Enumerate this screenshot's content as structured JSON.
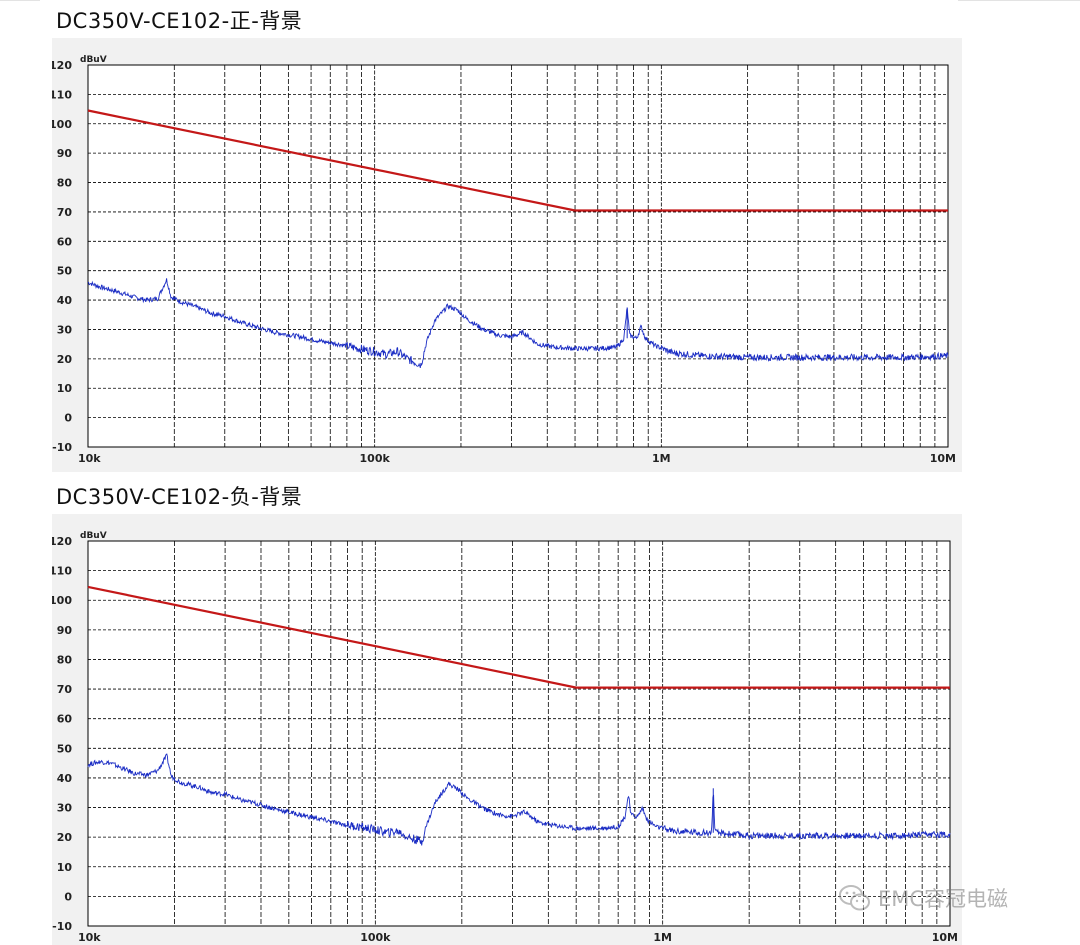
{
  "colors": {
    "plot_bg": "#ffffff",
    "frame_bg": "#f1f1f1",
    "grid": "#000000",
    "limit_line": "#c41818",
    "trace": "#1a2cc4"
  },
  "watermark": {
    "text": "EMC容冠电磁",
    "icon": "wechat-icon"
  },
  "chart_data": [
    {
      "type": "line",
      "title": "DC350V-CE102-正-背景",
      "ylabel": "dBuV",
      "xlabel": "",
      "x_scale": "log",
      "xlim": [
        10000,
        10000000
      ],
      "ylim": [
        -10,
        120
      ],
      "grid": true,
      "x_ticks": [
        {
          "value": 10000,
          "label": "10k"
        },
        {
          "value": 100000,
          "label": "100k"
        },
        {
          "value": 1000000,
          "label": "1M"
        },
        {
          "value": 10000000,
          "label": "10M"
        }
      ],
      "y_ticks": [
        -10,
        0,
        10,
        20,
        30,
        40,
        50,
        60,
        70,
        80,
        90,
        100,
        110,
        120
      ],
      "series": [
        {
          "kind": "limit",
          "points": [
            [
              10000,
              104.5
            ],
            [
              500000,
              70.5
            ],
            [
              10000000,
              70.5
            ]
          ]
        },
        {
          "kind": "measured",
          "points": [
            [
              10000,
              46
            ],
            [
              11000,
              44.5
            ],
            [
              12000,
              43.5
            ],
            [
              13000,
              42.5
            ],
            [
              14500,
              41
            ],
            [
              16000,
              40
            ],
            [
              17500,
              40.5
            ],
            [
              18800,
              47
            ],
            [
              19500,
              41
            ],
            [
              21000,
              39.5
            ],
            [
              24000,
              37.5
            ],
            [
              27000,
              35.5
            ],
            [
              30000,
              34.5
            ],
            [
              34000,
              32.5
            ],
            [
              38000,
              31
            ],
            [
              45000,
              29
            ],
            [
              55000,
              27.5
            ],
            [
              65000,
              26
            ],
            [
              75000,
              25
            ],
            [
              88000,
              23.5
            ],
            [
              100000,
              22.5
            ],
            [
              110000,
              21.5
            ],
            [
              120000,
              22.5
            ],
            [
              130000,
              20
            ],
            [
              145000,
              18
            ],
            [
              152000,
              26
            ],
            [
              162000,
              33
            ],
            [
              180000,
              38
            ],
            [
              195000,
              36.5
            ],
            [
              210000,
              33.5
            ],
            [
              240000,
              30
            ],
            [
              270000,
              28
            ],
            [
              300000,
              27.5
            ],
            [
              330000,
              29
            ],
            [
              370000,
              25
            ],
            [
              420000,
              24
            ],
            [
              500000,
              23.5
            ],
            [
              600000,
              23.5
            ],
            [
              700000,
              24
            ],
            [
              740000,
              27
            ],
            [
              760000,
              37.5
            ],
            [
              775000,
              28
            ],
            [
              820000,
              27
            ],
            [
              850000,
              31
            ],
            [
              880000,
              27
            ],
            [
              950000,
              24.5
            ],
            [
              1100000,
              22
            ],
            [
              1400000,
              21
            ],
            [
              2000000,
              20.5
            ],
            [
              3000000,
              20.5
            ],
            [
              5000000,
              20.5
            ],
            [
              7000000,
              20.5
            ],
            [
              10000000,
              21
            ]
          ]
        }
      ]
    },
    {
      "type": "line",
      "title": "DC350V-CE102-负-背景",
      "ylabel": "dBuV",
      "xlabel": "",
      "x_scale": "log",
      "xlim": [
        10000,
        10000000
      ],
      "ylim": [
        -10,
        120
      ],
      "grid": true,
      "x_ticks": [
        {
          "value": 10000,
          "label": "10k"
        },
        {
          "value": 100000,
          "label": "100k"
        },
        {
          "value": 1000000,
          "label": "1M"
        },
        {
          "value": 10000000,
          "label": "10M"
        }
      ],
      "y_ticks": [
        -10,
        0,
        10,
        20,
        30,
        40,
        50,
        60,
        70,
        80,
        90,
        100,
        110,
        120
      ],
      "series": [
        {
          "kind": "limit",
          "points": [
            [
              10000,
              104.5
            ],
            [
              500000,
              70.5
            ],
            [
              10000000,
              70.5
            ]
          ]
        },
        {
          "kind": "measured",
          "points": [
            [
              10000,
              44.5
            ],
            [
              11000,
              45.5
            ],
            [
              12000,
              45
            ],
            [
              13000,
              43.5
            ],
            [
              14500,
              41.5
            ],
            [
              16000,
              41
            ],
            [
              17500,
              42.5
            ],
            [
              18800,
              47.5
            ],
            [
              19500,
              40.5
            ],
            [
              21000,
              38.5
            ],
            [
              24000,
              37
            ],
            [
              27000,
              35
            ],
            [
              30000,
              34.5
            ],
            [
              34000,
              32.5
            ],
            [
              38000,
              31.5
            ],
            [
              45000,
              29.5
            ],
            [
              55000,
              27.5
            ],
            [
              65000,
              26
            ],
            [
              75000,
              24.5
            ],
            [
              88000,
              23.5
            ],
            [
              100000,
              22.5
            ],
            [
              110000,
              21.5
            ],
            [
              120000,
              22
            ],
            [
              130000,
              20
            ],
            [
              145000,
              18.5
            ],
            [
              152000,
              25
            ],
            [
              162000,
              32
            ],
            [
              180000,
              38
            ],
            [
              195000,
              36
            ],
            [
              210000,
              33
            ],
            [
              240000,
              29.5
            ],
            [
              270000,
              27.5
            ],
            [
              300000,
              27
            ],
            [
              330000,
              28.5
            ],
            [
              370000,
              25
            ],
            [
              420000,
              24
            ],
            [
              500000,
              23
            ],
            [
              600000,
              23
            ],
            [
              700000,
              23.5
            ],
            [
              740000,
              27
            ],
            [
              760000,
              34.5
            ],
            [
              775000,
              27.5
            ],
            [
              820000,
              27
            ],
            [
              850000,
              30
            ],
            [
              880000,
              26
            ],
            [
              950000,
              23.5
            ],
            [
              1100000,
              22
            ],
            [
              1400000,
              21.5
            ],
            [
              1480000,
              21.5
            ],
            [
              1500000,
              36.5
            ],
            [
              1520000,
              21.5
            ],
            [
              2000000,
              20.5
            ],
            [
              3000000,
              20.5
            ],
            [
              5000000,
              20.5
            ],
            [
              7000000,
              20.5
            ],
            [
              10000000,
              21
            ]
          ]
        }
      ]
    }
  ]
}
